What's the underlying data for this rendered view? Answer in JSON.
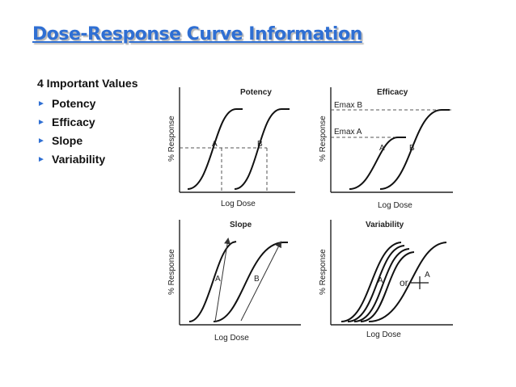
{
  "slide": {
    "title": "Dose-Response Curve Information",
    "intro": "4 Important Values",
    "bullets": [
      "Potency",
      "Efficacy",
      "Slope",
      "Variability"
    ]
  },
  "panels": {
    "potency": {
      "title": "Potency",
      "ylabel": "% Response",
      "xlabel": "Log Dose",
      "curve_a": "A",
      "curve_b": "B"
    },
    "efficacy": {
      "title": "Efficacy",
      "ylabel": "% Response",
      "xlabel": "Log Dose",
      "emax_b": "Emax B",
      "emax_a": "Emax A",
      "curve_a": "A",
      "curve_b": "B"
    },
    "slope": {
      "title": "Slope",
      "ylabel": "% Response",
      "xlabel": "Log Dose",
      "curve_a": "A",
      "curve_b": "B"
    },
    "variability": {
      "title": "Variability",
      "ylabel": "% Response",
      "xlabel": "Log Dose",
      "curve_a": "A",
      "or_text": "or",
      "curve_a2": "A"
    }
  },
  "colors": {
    "title": "#2f6fd3",
    "bullet": "#2f6fd3"
  }
}
